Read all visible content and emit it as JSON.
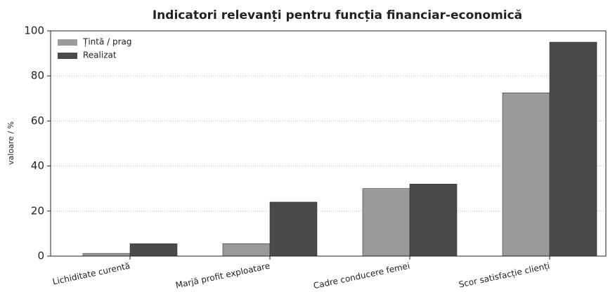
{
  "chart_data": {
    "type": "bar",
    "title": "Indicatori relevanți pentru funcția financiar-economică",
    "y_label": "valoare / %",
    "categories": [
      "Lichiditate curentă",
      "Marjă profit exploatare",
      "Cadre conducere femei",
      "Scor satisfacție clienți"
    ],
    "series": [
      {
        "name": "Țintă / prag",
        "color": "#9a9a9a",
        "values": [
          1.2,
          5.5,
          30,
          72.5
        ]
      },
      {
        "name": "Realizat",
        "color": "#4a4a4a",
        "values": [
          5.5,
          24,
          32,
          95
        ]
      }
    ],
    "ylim": [
      0,
      100
    ],
    "yticks": [
      0,
      20,
      40,
      60,
      80,
      100
    ],
    "grid": true,
    "legend": "upper left"
  }
}
